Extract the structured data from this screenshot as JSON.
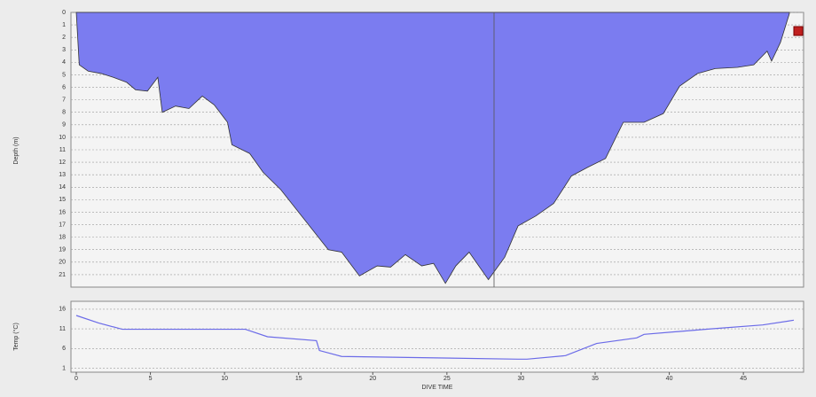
{
  "chart_data": [
    {
      "type": "area",
      "ylabel": "Depth (m)",
      "y_inverted": true,
      "color": "#7b7cf0",
      "grid": true,
      "xlim": [
        0,
        49
      ],
      "ylim": [
        0,
        22
      ],
      "yticks": [
        0,
        1,
        2,
        3,
        4,
        5,
        6,
        7,
        8,
        9,
        10,
        11,
        12,
        13,
        14,
        15,
        16,
        17,
        18,
        19,
        20,
        21
      ],
      "x": [
        0,
        0.2,
        0.8,
        1.7,
        2.5,
        3.4,
        4.0,
        4.8,
        5.5,
        5.8,
        6.7,
        7.6,
        8.5,
        9.3,
        10.2,
        10.5,
        11.7,
        12.6,
        13.8,
        15.0,
        16.2,
        17.0,
        17.9,
        19.1,
        20.3,
        21.2,
        22.2,
        23.3,
        24.1,
        24.9,
        25.6,
        26.5,
        27.8,
        28.9,
        29.8,
        31.0,
        32.2,
        33.4,
        34.5,
        35.7,
        36.9,
        38.3,
        39.6,
        40.7,
        41.9,
        43.1,
        44.6,
        45.7,
        46.6,
        46.9,
        47.5,
        48.1
      ],
      "values": [
        0,
        4.2,
        4.7,
        4.9,
        5.2,
        5.6,
        6.2,
        6.3,
        5.2,
        8.0,
        7.5,
        7.7,
        6.7,
        7.4,
        8.8,
        10.6,
        11.3,
        12.8,
        14.2,
        16.0,
        17.8,
        19.0,
        19.2,
        21.1,
        20.3,
        20.4,
        19.4,
        20.3,
        20.1,
        21.7,
        20.3,
        19.2,
        21.4,
        19.6,
        17.1,
        16.3,
        15.3,
        13.1,
        12.4,
        11.7,
        8.8,
        8.8,
        8.1,
        5.9,
        4.9,
        4.5,
        4.4,
        4.2,
        3.1,
        3.9,
        2.4,
        0.1
      ]
    },
    {
      "type": "line",
      "ylabel": "Temp (°C)",
      "xlabel": "DIVE TIME",
      "color": "#6b6be8",
      "grid": true,
      "xlim": [
        0,
        49
      ],
      "ylim": [
        0,
        18
      ],
      "xticks": [
        0,
        5,
        10,
        15,
        20,
        25,
        30,
        35,
        40,
        45
      ],
      "yticks": [
        1,
        6,
        11,
        16
      ],
      "x": [
        0,
        1.5,
        3.1,
        11.4,
        12.9,
        16.2,
        16.4,
        17.9,
        29.8,
        30.4,
        33.0,
        35.1,
        37.8,
        38.3,
        42.8,
        46.3,
        48.4
      ],
      "values": [
        14.4,
        12.5,
        10.9,
        10.9,
        9.0,
        8.0,
        5.5,
        4.0,
        3.3,
        3.3,
        4.2,
        7.3,
        8.7,
        9.6,
        11.0,
        12.0,
        13.2
      ]
    }
  ]
}
